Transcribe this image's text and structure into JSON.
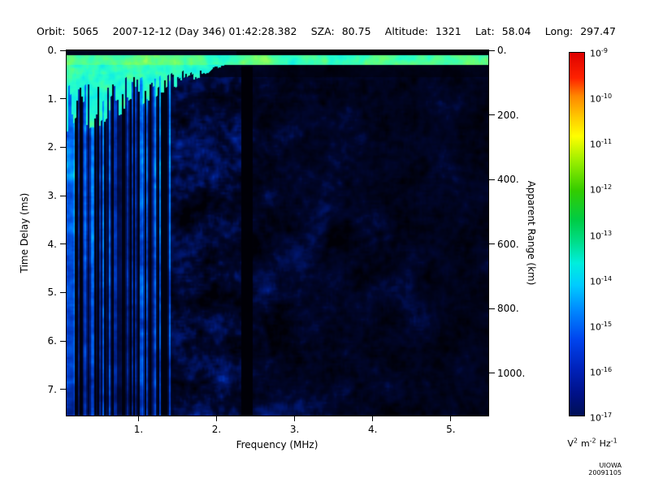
{
  "page": {
    "background": "#ffffff"
  },
  "header": {
    "orbit_label": "Orbit:",
    "orbit_value": "5065",
    "datetime": "2007-12-12 (Day 346) 01:42:28.382",
    "sza_label": "SZA:",
    "sza_value": "80.75",
    "altitude_label": "Altitude:",
    "altitude_value": "1321",
    "lat_label": "Lat:",
    "lat_value": "58.04",
    "long_label": "Long:",
    "long_value": "297.47"
  },
  "footer": {
    "credit": "UIOWA 20091105"
  },
  "chart_data": {
    "type": "heatmap",
    "xlabel": "Frequency (MHz)",
    "ylabel_left": "Time Delay (ms)",
    "ylabel_right": "Apparent Range (km)",
    "x_range_mhz": [
      0.08,
      5.48
    ],
    "x_ticks": [
      {
        "value": 1,
        "label": "1."
      },
      {
        "value": 2,
        "label": "2."
      },
      {
        "value": 3,
        "label": "3."
      },
      {
        "value": 4,
        "label": "4."
      },
      {
        "value": 5,
        "label": "5."
      }
    ],
    "y_range_ms": [
      0,
      7.54
    ],
    "y_ticks_left": [
      {
        "value": 0,
        "label": "0."
      },
      {
        "value": 1,
        "label": "1."
      },
      {
        "value": 2,
        "label": "2."
      },
      {
        "value": 3,
        "label": "3."
      },
      {
        "value": 4,
        "label": "4."
      },
      {
        "value": 5,
        "label": "5."
      },
      {
        "value": 6,
        "label": "6."
      },
      {
        "value": 7,
        "label": "7."
      }
    ],
    "y_range_km": [
      0,
      1131
    ],
    "km_per_ms": 150,
    "y_ticks_right": [
      {
        "value": 0,
        "label": "0."
      },
      {
        "value": 200,
        "label": "200."
      },
      {
        "value": 400,
        "label": "400."
      },
      {
        "value": 600,
        "label": "600."
      },
      {
        "value": 800,
        "label": "800."
      },
      {
        "value": 1000,
        "label": "1000."
      }
    ],
    "colorbar": {
      "scale": "log",
      "tick_base": "10",
      "tick_exponents": [
        -9,
        -10,
        -11,
        -12,
        -13,
        -14,
        -15,
        -16,
        -17
      ],
      "unit_parts": [
        [
          "V",
          "2"
        ],
        [
          "m",
          "-2"
        ],
        [
          "Hz",
          "-1"
        ]
      ],
      "gradient": [
        {
          "pos": 0,
          "color": "#dd0000"
        },
        {
          "pos": 7,
          "color": "#ff2200"
        },
        {
          "pos": 12,
          "color": "#ff8800"
        },
        {
          "pos": 18,
          "color": "#ffcc00"
        },
        {
          "pos": 23,
          "color": "#ffff00"
        },
        {
          "pos": 30,
          "color": "#99ee00"
        },
        {
          "pos": 38,
          "color": "#33cc00"
        },
        {
          "pos": 46,
          "color": "#00cc44"
        },
        {
          "pos": 52,
          "color": "#00dd88"
        },
        {
          "pos": 58,
          "color": "#00eedd"
        },
        {
          "pos": 64,
          "color": "#00ccff"
        },
        {
          "pos": 71,
          "color": "#0088ff"
        },
        {
          "pos": 79,
          "color": "#0044ee"
        },
        {
          "pos": 87,
          "color": "#0022bb"
        },
        {
          "pos": 94,
          "color": "#001188"
        },
        {
          "pos": 100,
          "color": "#000f55"
        }
      ]
    },
    "colormap": [
      {
        "pos": 0.0,
        "rgb": [
          0,
          0,
          6
        ]
      },
      {
        "pos": 0.18,
        "rgb": [
          0,
          6,
          45
        ]
      },
      {
        "pos": 0.35,
        "rgb": [
          0,
          25,
          120
        ]
      },
      {
        "pos": 0.5,
        "rgb": [
          0,
          60,
          200
        ]
      },
      {
        "pos": 0.62,
        "rgb": [
          0,
          110,
          250
        ]
      },
      {
        "pos": 0.72,
        "rgb": [
          0,
          165,
          255
        ]
      },
      {
        "pos": 0.81,
        "rgb": [
          0,
          225,
          250
        ]
      },
      {
        "pos": 0.88,
        "rgb": [
          40,
          255,
          200
        ]
      },
      {
        "pos": 0.94,
        "rgb": [
          110,
          255,
          110
        ]
      },
      {
        "pos": 1.0,
        "rgb": [
          220,
          255,
          60
        ]
      }
    ],
    "noise_seed": 20091105,
    "features": [
      {
        "name": "transmit-pulse-line",
        "time_ms": [
          0.1,
          0.3
        ],
        "freq_mhz": [
          0.08,
          5.48
        ],
        "level": "strong"
      },
      {
        "name": "ionospheric-echo-region",
        "time_ms": [
          0.1,
          1.9
        ],
        "freq_mhz": [
          0.08,
          2.25
        ],
        "level": "strong",
        "note": "bright cyan-green region, ragged lower edge, deeper at low frequency"
      },
      {
        "name": "low-frequency-interference-stripes",
        "time_ms": [
          0.0,
          7.54
        ],
        "freq_mhz": [
          0.08,
          1.42
        ],
        "level": "medium",
        "note": "full-height vertical striping"
      },
      {
        "name": "quiet-column",
        "time_ms": [
          0.32,
          7.54
        ],
        "freq_mhz": [
          2.31,
          2.46
        ],
        "level": "none",
        "note": "black vertical gap near 2.4 MHz"
      },
      {
        "name": "diffuse-background-speckle",
        "time_ms": [
          0.3,
          7.54
        ],
        "freq_mhz": [
          1.42,
          5.48
        ],
        "level": "weak",
        "note": "blue speckle fading toward high frequency"
      }
    ]
  }
}
